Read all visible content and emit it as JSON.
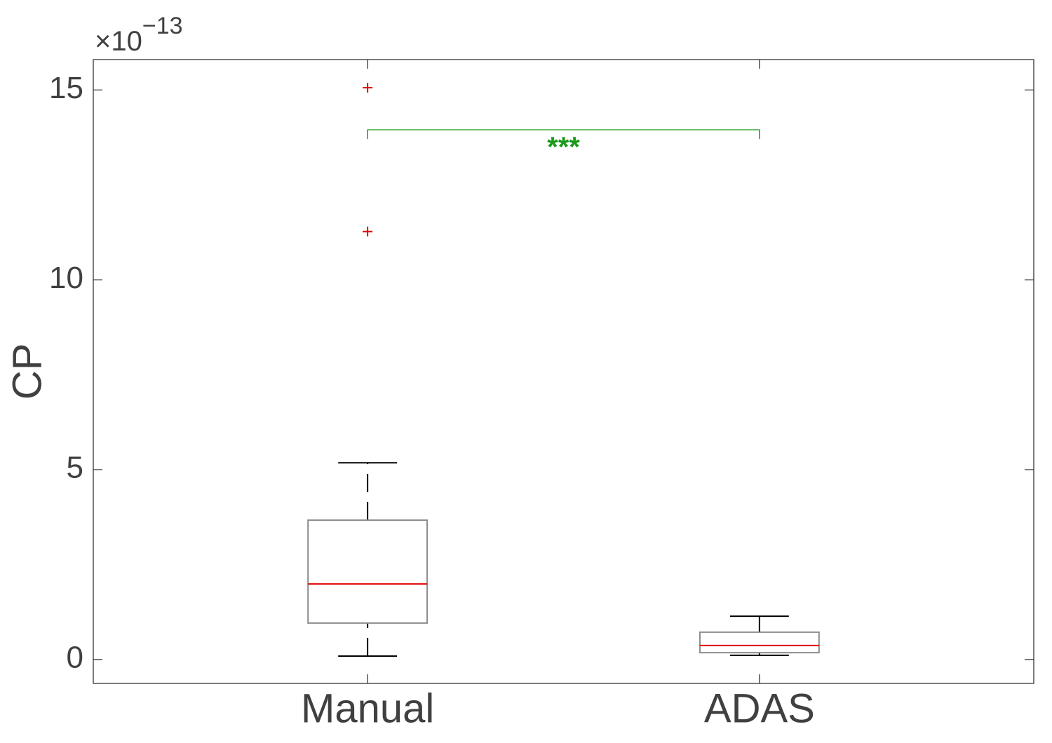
{
  "chart_data": {
    "type": "box",
    "ylabel": "CP",
    "y_multiplier": {
      "base": "×10",
      "exponent": "−13"
    },
    "categories": [
      "Manual",
      "ADAS"
    ],
    "boxes": [
      {
        "whislo": 0.09,
        "q1": 0.96,
        "med": 1.99,
        "q3": 3.67,
        "whishi": 5.18,
        "fliers": [
          11.27,
          15.06
        ]
      },
      {
        "whislo": 0.11,
        "q1": 0.18,
        "med": 0.37,
        "q3": 0.72,
        "whishi": 1.14,
        "fliers": []
      }
    ],
    "box_color": "#8c8c8c",
    "median_color": "#e00000",
    "whisker_color": "#000000",
    "flier_color": "#e00000",
    "significance": {
      "from": 0,
      "to": 1,
      "y": 13.95,
      "label": "***",
      "color": "#1a9a1a"
    },
    "xlim": [
      0.3,
      2.7
    ],
    "ylim": [
      -0.63,
      15.8
    ],
    "yticks": [
      0,
      5,
      10,
      15
    ],
    "grid": false
  }
}
